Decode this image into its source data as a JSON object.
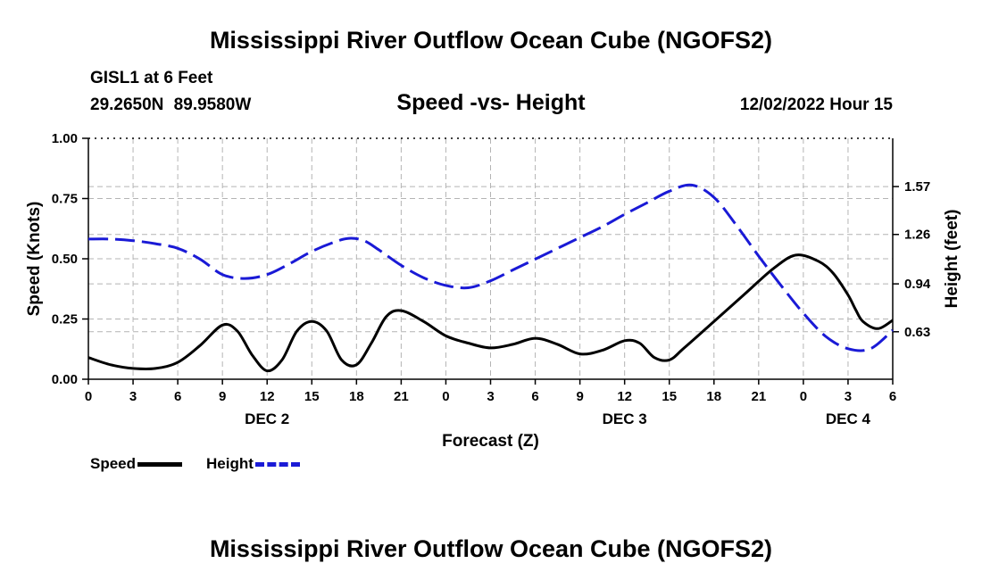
{
  "header": {
    "title": "Mississippi River Outflow Ocean Cube (NGOFS2)",
    "station": "GISL1 at 6 Feet",
    "coords": "29.2650N  89.9580W",
    "subtitle": "Speed -vs- Height",
    "datetime": "12/02/2022 Hour 15"
  },
  "footer": {
    "title": "Mississippi River Outflow Ocean Cube (NGOFS2)"
  },
  "legend": {
    "speed_label": "Speed",
    "height_label": "Height"
  },
  "colors": {
    "speed": "#000000",
    "height": "#1a1ad6",
    "grid": "#b4b4b4"
  },
  "chart_data": {
    "type": "line",
    "title": "Speed -vs- Height",
    "xlabel": "Forecast (Z)",
    "ylabel": "Speed (Knots)",
    "y2label": "Height (feet)",
    "xlim": [
      0,
      54
    ],
    "ylim": [
      0,
      1
    ],
    "y2lim": [
      0.3225,
      1.8825
    ],
    "x_ticks": [
      0,
      3,
      6,
      9,
      12,
      15,
      18,
      21,
      24,
      27,
      30,
      33,
      36,
      39,
      42,
      45,
      48,
      51,
      54
    ],
    "x_tick_labels": [
      "0",
      "3",
      "6",
      "9",
      "12",
      "15",
      "18",
      "21",
      "0",
      "3",
      "6",
      "9",
      "12",
      "15",
      "18",
      "21",
      "0",
      "3",
      "6"
    ],
    "day_labels": [
      {
        "x": 12,
        "label": "DEC 2"
      },
      {
        "x": 36,
        "label": "DEC 3"
      },
      {
        "x": 51,
        "label": "DEC 4"
      }
    ],
    "y_ticks": [
      0,
      0.25,
      0.5,
      0.75,
      1.0
    ],
    "y_tick_labels": [
      "0.00",
      "0.25",
      "0.50",
      "0.75",
      "1.00"
    ],
    "y2_ticks": [
      0.63,
      0.94,
      1.26,
      1.57
    ],
    "y2_tick_labels": [
      "0.63",
      "0.94",
      "1.26",
      "1.57"
    ],
    "series": [
      {
        "name": "Speed",
        "axis": "left",
        "x": [
          0,
          1.5,
          3,
          4.5,
          6,
          7.5,
          9,
          10,
          11,
          12,
          13,
          14,
          15,
          16,
          17,
          18,
          19,
          20,
          21,
          22.5,
          24,
          25.5,
          27,
          28.5,
          30,
          31.5,
          33,
          34.5,
          36,
          37,
          38,
          39,
          40,
          42,
          44,
          46,
          47.5,
          49,
          50,
          51,
          51.5,
          52,
          53,
          54
        ],
        "values": [
          0.09,
          0.06,
          0.045,
          0.045,
          0.07,
          0.14,
          0.225,
          0.2,
          0.1,
          0.035,
          0.08,
          0.2,
          0.24,
          0.2,
          0.08,
          0.06,
          0.15,
          0.26,
          0.285,
          0.24,
          0.18,
          0.15,
          0.13,
          0.145,
          0.17,
          0.145,
          0.105,
          0.12,
          0.16,
          0.15,
          0.09,
          0.08,
          0.13,
          0.24,
          0.35,
          0.46,
          0.515,
          0.49,
          0.44,
          0.35,
          0.29,
          0.24,
          0.21,
          0.245
        ]
      },
      {
        "name": "Height",
        "axis": "right",
        "x": [
          0,
          1.5,
          3,
          4.5,
          6,
          7.5,
          9,
          10.5,
          12,
          13.5,
          15,
          16.5,
          17.5,
          18.5,
          19.5,
          21,
          22.5,
          24,
          25.5,
          27,
          28.5,
          30,
          31.5,
          33,
          34.5,
          36,
          37.5,
          39,
          40.5,
          42,
          43.5,
          45,
          46.5,
          48,
          49.5,
          51,
          52.5,
          54
        ],
        "values": [
          1.23,
          1.23,
          1.22,
          1.2,
          1.17,
          1.1,
          1.0,
          0.975,
          1.0,
          1.07,
          1.15,
          1.21,
          1.235,
          1.22,
          1.16,
          1.06,
          0.98,
          0.93,
          0.915,
          0.96,
          1.03,
          1.1,
          1.17,
          1.24,
          1.31,
          1.39,
          1.465,
          1.54,
          1.58,
          1.5,
          1.32,
          1.12,
          0.93,
          0.75,
          0.6,
          0.52,
          0.52,
          0.64
        ]
      }
    ]
  }
}
